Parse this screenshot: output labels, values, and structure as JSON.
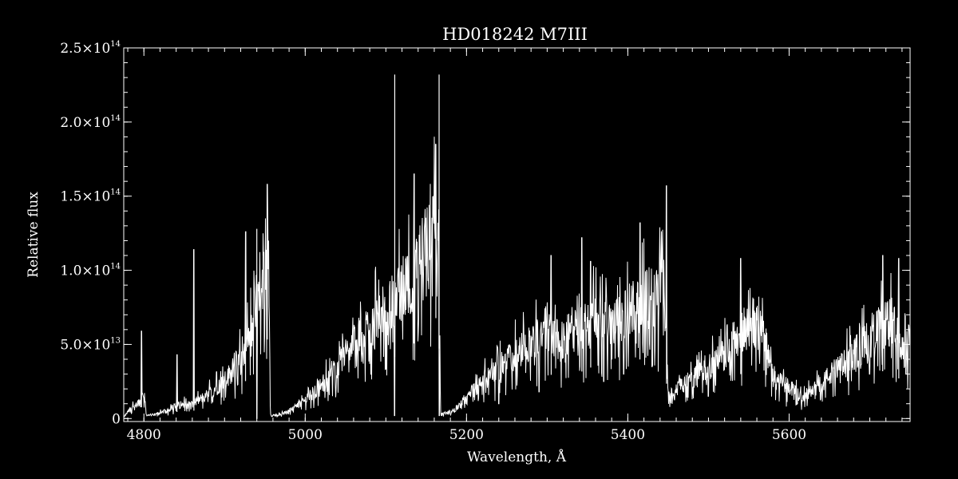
{
  "chart_data": {
    "type": "line",
    "title": "HD018242   M7III",
    "xlabel": "Wavelength, Å",
    "ylabel": "Relative flux",
    "xlim": [
      4775,
      5750
    ],
    "ylim": [
      -2000000000000.0,
      250000000000000.0
    ],
    "x_ticks": [
      {
        "value": 4800,
        "label": "4800"
      },
      {
        "value": 5000,
        "label": "5000"
      },
      {
        "value": 5200,
        "label": "5200"
      },
      {
        "value": 5400,
        "label": "5400"
      },
      {
        "value": 5600,
        "label": "5600"
      }
    ],
    "y_ticks": [
      {
        "value": 0,
        "mantissa": "0",
        "exp": ""
      },
      {
        "value": 50000000000000.0,
        "mantissa": "5.0×10",
        "exp": "13"
      },
      {
        "value": 100000000000000.0,
        "mantissa": "1.0×10",
        "exp": "14"
      },
      {
        "value": 150000000000000.0,
        "mantissa": "1.5×10",
        "exp": "14"
      },
      {
        "value": 200000000000000.0,
        "mantissa": "2.0×10",
        "exp": "14"
      },
      {
        "value": 250000000000000.0,
        "mantissa": "2.5×10",
        "exp": "14"
      }
    ],
    "grid": false,
    "series": [
      {
        "color": "#ffffff",
        "envelope": [
          [
            4775,
            1000000000000.0
          ],
          [
            4785,
            8000000000000.0
          ],
          [
            4795,
            12000000000000.0
          ],
          [
            4800,
            20000000000000.0
          ],
          [
            4803,
            2000000000000.0
          ],
          [
            4815,
            3000000000000.0
          ],
          [
            4830,
            6000000000000.0
          ],
          [
            4845,
            10000000000000.0
          ],
          [
            4860,
            10000000000000.0
          ],
          [
            4880,
            17000000000000.0
          ],
          [
            4900,
            26000000000000.0
          ],
          [
            4915,
            38000000000000.0
          ],
          [
            4930,
            55000000000000.0
          ],
          [
            4945,
            85000000000000.0
          ],
          [
            4952,
            105000000000000.0
          ],
          [
            4955,
            110000000000000.0
          ],
          [
            4957,
            2000000000000.0
          ],
          [
            4970,
            3000000000000.0
          ],
          [
            4985,
            7000000000000.0
          ],
          [
            5000,
            13000000000000.0
          ],
          [
            5020,
            23000000000000.0
          ],
          [
            5040,
            38000000000000.0
          ],
          [
            5060,
            52000000000000.0
          ],
          [
            5080,
            65000000000000.0
          ],
          [
            5100,
            75000000000000.0
          ],
          [
            5120,
            90000000000000.0
          ],
          [
            5140,
            105000000000000.0
          ],
          [
            5155,
            125000000000000.0
          ],
          [
            5165,
            140000000000000.0
          ],
          [
            5168,
            3000000000000.0
          ],
          [
            5185,
            6000000000000.0
          ],
          [
            5200,
            15000000000000.0
          ],
          [
            5220,
            26000000000000.0
          ],
          [
            5240,
            35000000000000.0
          ],
          [
            5260,
            45000000000000.0
          ],
          [
            5280,
            53000000000000.0
          ],
          [
            5300,
            63000000000000.0
          ],
          [
            5310,
            55000000000000.0
          ],
          [
            5325,
            58000000000000.0
          ],
          [
            5345,
            64000000000000.0
          ],
          [
            5360,
            72000000000000.0
          ],
          [
            5375,
            63000000000000.0
          ],
          [
            5395,
            70000000000000.0
          ],
          [
            5410,
            78000000000000.0
          ],
          [
            5430,
            85000000000000.0
          ],
          [
            5445,
            95000000000000.0
          ],
          [
            5450,
            15000000000000.0
          ],
          [
            5465,
            23000000000000.0
          ],
          [
            5480,
            28000000000000.0
          ],
          [
            5500,
            35000000000000.0
          ],
          [
            5520,
            45000000000000.0
          ],
          [
            5540,
            60000000000000.0
          ],
          [
            5555,
            68000000000000.0
          ],
          [
            5570,
            55000000000000.0
          ],
          [
            5580,
            28000000000000.0
          ],
          [
            5600,
            22000000000000.0
          ],
          [
            5615,
            15000000000000.0
          ],
          [
            5630,
            20000000000000.0
          ],
          [
            5650,
            30000000000000.0
          ],
          [
            5670,
            40000000000000.0
          ],
          [
            5690,
            50000000000000.0
          ],
          [
            5710,
            62000000000000.0
          ],
          [
            5730,
            68000000000000.0
          ],
          [
            5740,
            45000000000000.0
          ],
          [
            5750,
            55000000000000.0
          ]
        ],
        "spikes": [
          [
            4797,
            59000000000000.0
          ],
          [
            4841,
            43000000000000.0
          ],
          [
            4862,
            114000000000000.0
          ],
          [
            4926,
            126000000000000.0
          ],
          [
            4940,
            128000000000000.0
          ],
          [
            4953,
            158000000000000.0
          ],
          [
            5111,
            232000000000000.0
          ],
          [
            5135,
            165000000000000.0
          ],
          [
            5166,
            232000000000000.0
          ],
          [
            5162,
            185000000000000.0
          ],
          [
            5305,
            110000000000000.0
          ],
          [
            5343,
            122000000000000.0
          ],
          [
            5354,
            106000000000000.0
          ],
          [
            5415,
            132000000000000.0
          ],
          [
            5448,
            157000000000000.0
          ],
          [
            5540,
            108000000000000.0
          ],
          [
            5716,
            110000000000000.0
          ],
          [
            5736,
            108000000000000.0
          ]
        ],
        "dips": [
          [
            4940,
            0
          ],
          [
            5111,
            2000000000000.0
          ],
          [
            5166,
            2000000000000.0
          ],
          [
            5240,
            10000000000000.0
          ],
          [
            5290,
            18000000000000.0
          ],
          [
            5370,
            25000000000000.0
          ],
          [
            5395,
            30000000000000.0
          ],
          [
            5430,
            35000000000000.0
          ],
          [
            5500,
            15000000000000.0
          ],
          [
            5610,
            10000000000000.0
          ],
          [
            5700,
            30000000000000.0
          ],
          [
            5745,
            30000000000000.0
          ]
        ]
      }
    ]
  }
}
